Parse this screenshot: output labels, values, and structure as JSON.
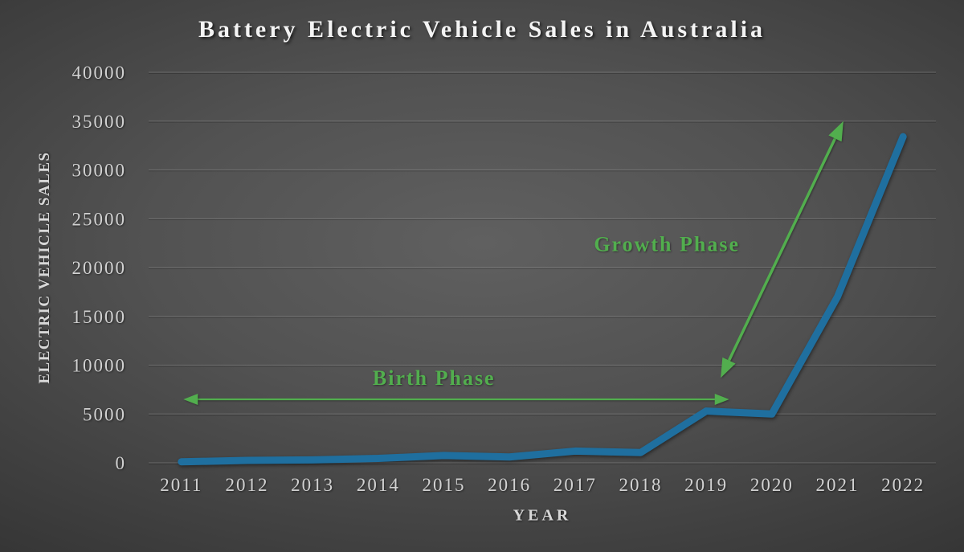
{
  "page": {
    "background_center_color": "#5e5e5e",
    "background_edge_color": "#242424"
  },
  "chart_data": {
    "type": "line",
    "title": "Battery Electric Vehicle Sales in Australia",
    "xlabel": "YEAR",
    "ylabel": "ELECTRIC VEHICLE SALES",
    "categories": [
      "2011",
      "2012",
      "2013",
      "2014",
      "2015",
      "2016",
      "2017",
      "2018",
      "2019",
      "2020",
      "2021",
      "2022"
    ],
    "series": [
      {
        "name": "Battery Electric Vehicle Sales",
        "values": [
          100,
          250,
          300,
          450,
          750,
          600,
          1200,
          1050,
          5300,
          5000,
          17000,
          33400
        ],
        "color": "#1f6f9f"
      }
    ],
    "ylim": [
      0,
      40000
    ],
    "yticks": [
      0,
      5000,
      10000,
      15000,
      20000,
      25000,
      30000,
      35000,
      40000
    ],
    "grid": true,
    "legend": false,
    "gridline_color": "rgba(255,255,255,0.16)",
    "tick_label_color": "#d2d2d2",
    "annotation_color": "#52ae4e",
    "annotations": [
      {
        "name": "birth-phase-label",
        "type": "label",
        "text": "Birth Phase",
        "at": {
          "x": 3.85,
          "y": 8000
        }
      },
      {
        "name": "growth-phase-label",
        "type": "label",
        "text": "Growth Phase",
        "at": {
          "x": 7.4,
          "y": 21700
        }
      },
      {
        "name": "birth-phase-arrow",
        "type": "double_arrow",
        "from": {
          "x": 0.03,
          "y": 6500
        },
        "to": {
          "x": 8.35,
          "y": 6500
        },
        "stroke_width": 2.2,
        "head_len": 18,
        "head_halfwidth": 7
      },
      {
        "name": "growth-phase-arrow",
        "type": "double_arrow",
        "from": {
          "x": 8.22,
          "y": 8700
        },
        "to": {
          "x": 10.09,
          "y": 35000
        },
        "stroke_width": 3.5,
        "head_len": 24,
        "head_halfwidth": 9
      }
    ]
  }
}
